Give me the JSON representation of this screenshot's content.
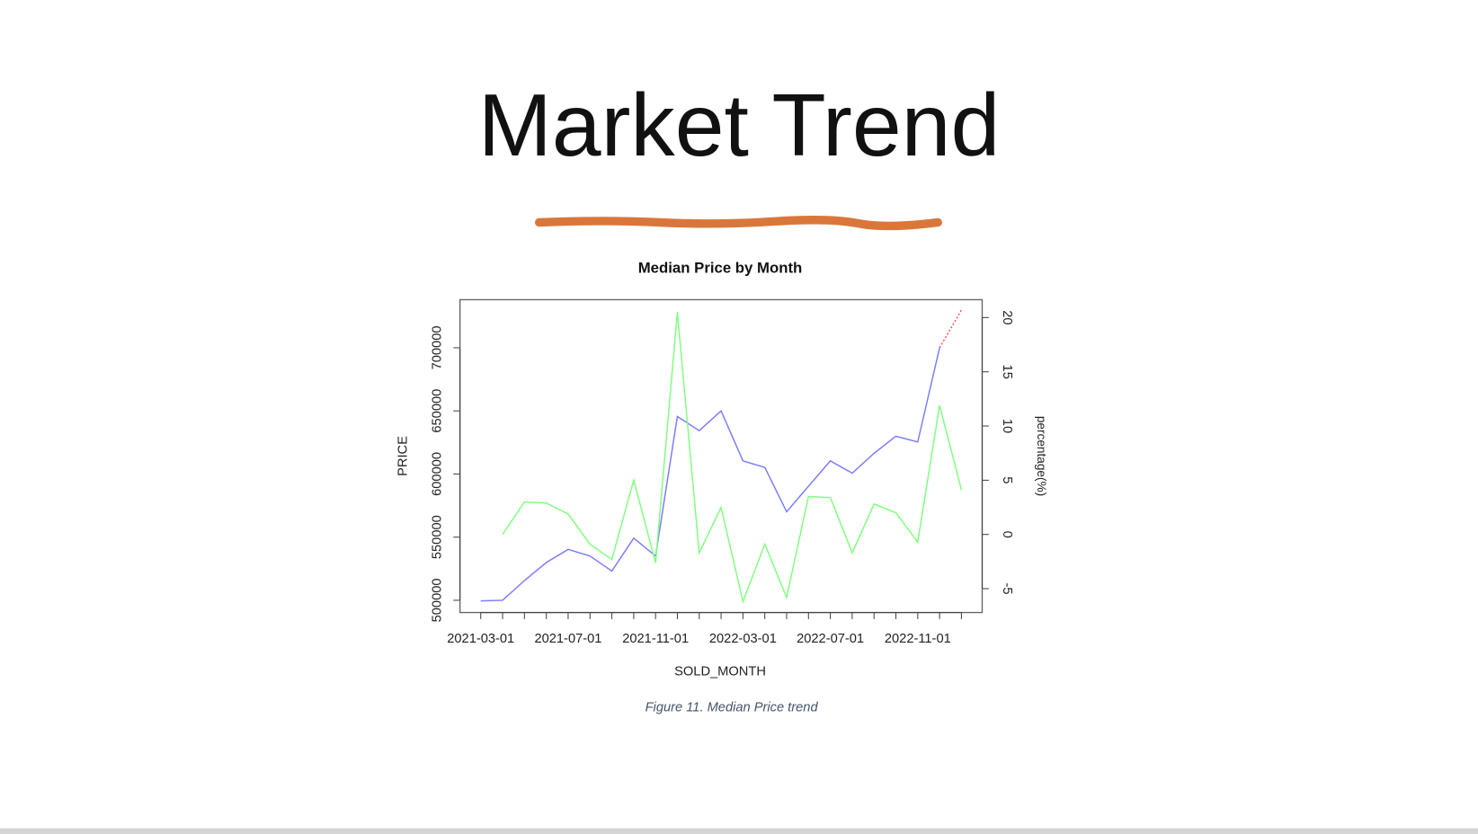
{
  "slide_title": "Market Trend",
  "caption": "Figure 11. Median Price trend",
  "chart_data": {
    "type": "line",
    "title": "Median Price by Month",
    "x_label": "SOLD_MONTH",
    "y_label": "PRICE",
    "y2_label": "percentage(%)",
    "x": [
      "2021-03-01",
      "2021-04-01",
      "2021-05-01",
      "2021-06-01",
      "2021-07-01",
      "2021-08-01",
      "2021-09-01",
      "2021-10-01",
      "2021-11-01",
      "2021-12-01",
      "2022-01-01",
      "2022-02-01",
      "2022-03-01",
      "2022-04-01",
      "2022-05-01",
      "2022-06-01",
      "2022-07-01",
      "2022-08-01",
      "2022-09-01",
      "2022-10-01",
      "2022-11-01",
      "2022-12-01",
      "2023-01-01"
    ],
    "xticks": [
      "2021-03-01",
      "2021-07-01",
      "2021-11-01",
      "2022-03-01",
      "2022-07-01",
      "2022-11-01"
    ],
    "series": [
      {
        "color": "#7b7bff",
        "values": [
          499500,
          500000,
          515600,
          529900,
          540300,
          535100,
          523100,
          549200,
          535100,
          645500,
          634300,
          650000,
          610400,
          605200,
          570100,
          590300,
          610400,
          600700,
          616400,
          629900,
          625400,
          700000,
          null
        ]
      },
      {
        "color": "#ff5555",
        "dashed": true,
        "values": [
          null,
          null,
          null,
          null,
          null,
          null,
          null,
          null,
          null,
          null,
          null,
          null,
          null,
          null,
          null,
          null,
          null,
          null,
          null,
          null,
          null,
          700000,
          729900
        ]
      },
      {
        "color": "#80ff80",
        "axis": "y2",
        "values": [
          null,
          0,
          3.0,
          2.9,
          1.9,
          -0.9,
          -2.3,
          5.0,
          -2.6,
          20.5,
          -1.7,
          2.5,
          -6.2,
          -0.9,
          -5.8,
          3.5,
          3.4,
          -1.7,
          2.8,
          2.0,
          -0.7,
          11.9,
          4.1
        ]
      }
    ],
    "ylim": [
      490300,
      738060
    ],
    "yticks": [
      500000,
      550000,
      600000,
      650000,
      700000
    ],
    "y2lim": [
      -7.2,
      21.65
    ],
    "y2ticks": [
      -5,
      0,
      5,
      10,
      15,
      20
    ]
  }
}
